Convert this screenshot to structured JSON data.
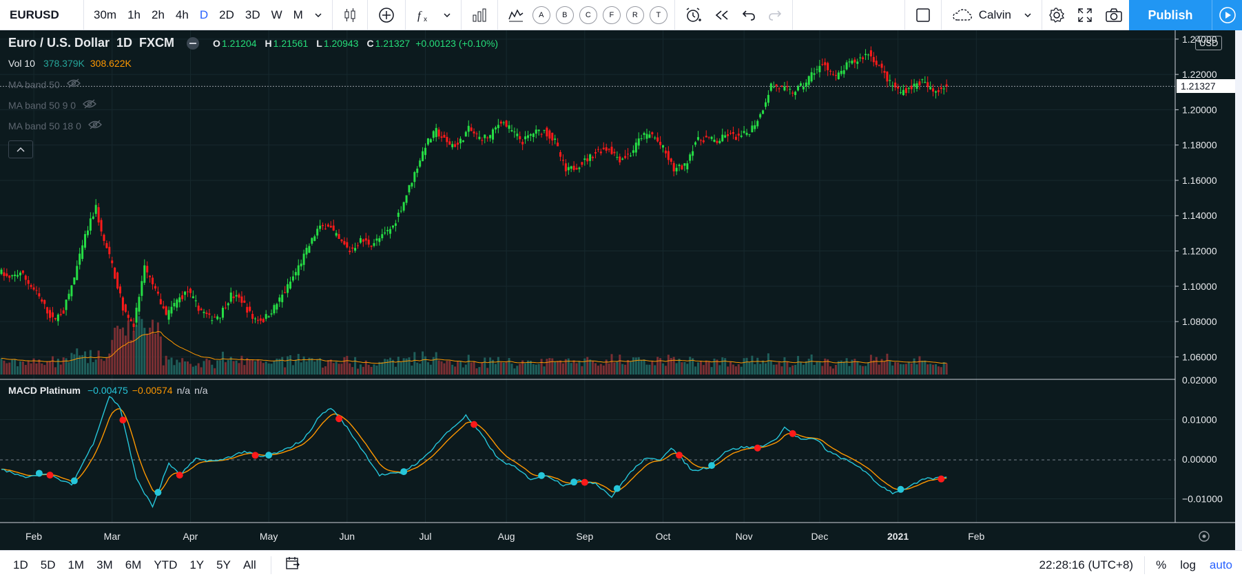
{
  "toolbar": {
    "symbol": "EURUSD",
    "timeframes": [
      "30m",
      "1h",
      "2h",
      "4h",
      "D",
      "2D",
      "3D",
      "W",
      "M"
    ],
    "active_timeframe": "D",
    "alert_circles": [
      "A",
      "B",
      "C",
      "F",
      "R",
      "T"
    ],
    "layout_name": "Calvin",
    "publish_label": "Publish"
  },
  "legend": {
    "title": "Euro / U.S. Dollar",
    "interval": "1D",
    "exchange": "FXCM",
    "o_label": "O",
    "o": "1.21204",
    "h_label": "H",
    "h": "1.21561",
    "l_label": "L",
    "l": "1.20943",
    "c_label": "C",
    "c": "1.21327",
    "change": "+0.00123 (+0.10%)",
    "vol_label": "Vol 10",
    "vol_1": "378.379K",
    "vol_2": "308.622K",
    "ma_1": "MA band 50",
    "ma_2": "MA band 50 9 0",
    "ma_3": "MA band 50 18 0",
    "macd_label": "MACD Platinum",
    "macd_1": "−0.00475",
    "macd_2": "−0.00574",
    "macd_3": "n/a",
    "macd_4": "n/a"
  },
  "price_axis": {
    "currency": "USD",
    "current_price": "1.21327",
    "ticks": [
      "1.24000",
      "1.22000",
      "1.20000",
      "1.18000",
      "1.16000",
      "1.14000",
      "1.12000",
      "1.10000",
      "1.08000",
      "1.06000"
    ]
  },
  "macd_axis": {
    "ticks": [
      "0.02000",
      "0.01000",
      "0.00000",
      "−0.01000"
    ]
  },
  "time_axis": {
    "labels": [
      "Feb",
      "Mar",
      "Apr",
      "May",
      "Jun",
      "Jul",
      "Aug",
      "Sep",
      "Oct",
      "Nov",
      "Dec",
      "2021",
      "Feb"
    ]
  },
  "colors": {
    "up": "#26de45",
    "down": "#ff1a1a",
    "background": "#0c1a1e",
    "macd_line": "#26c6da",
    "signal_line": "#ff9800",
    "accent": "#2196f3"
  },
  "bottom": {
    "ranges": [
      "1D",
      "5D",
      "1M",
      "3M",
      "6M",
      "YTD",
      "1Y",
      "5Y",
      "All"
    ],
    "clock": "22:28:16 (UTC+8)",
    "pct": "%",
    "log": "log",
    "auto": "auto"
  },
  "chart_data": {
    "type": "candlestick",
    "price_range": [
      1.05,
      1.245
    ],
    "macd_range": [
      -0.016,
      0.02
    ],
    "price_path": [
      [
        0,
        1.109
      ],
      [
        4,
        1.104
      ],
      [
        8,
        1.108
      ],
      [
        14,
        1.096
      ],
      [
        20,
        1.081
      ],
      [
        24,
        1.086
      ],
      [
        28,
        1.105
      ],
      [
        32,
        1.128
      ],
      [
        36,
        1.145
      ],
      [
        38,
        1.13
      ],
      [
        42,
        1.112
      ],
      [
        46,
        1.088
      ],
      [
        50,
        1.078
      ],
      [
        54,
        1.11
      ],
      [
        58,
        1.098
      ],
      [
        62,
        1.083
      ],
      [
        66,
        1.092
      ],
      [
        70,
        1.097
      ],
      [
        74,
        1.088
      ],
      [
        78,
        1.082
      ],
      [
        82,
        1.084
      ],
      [
        86,
        1.095
      ],
      [
        90,
        1.092
      ],
      [
        94,
        1.082
      ],
      [
        98,
        1.081
      ],
      [
        102,
        1.088
      ],
      [
        106,
        1.097
      ],
      [
        110,
        1.108
      ],
      [
        114,
        1.12
      ],
      [
        118,
        1.132
      ],
      [
        122,
        1.135
      ],
      [
        126,
        1.126
      ],
      [
        130,
        1.12
      ],
      [
        134,
        1.126
      ],
      [
        138,
        1.124
      ],
      [
        142,
        1.128
      ],
      [
        146,
        1.134
      ],
      [
        150,
        1.148
      ],
      [
        154,
        1.164
      ],
      [
        158,
        1.18
      ],
      [
        162,
        1.188
      ],
      [
        166,
        1.181
      ],
      [
        170,
        1.18
      ],
      [
        174,
        1.189
      ],
      [
        178,
        1.184
      ],
      [
        182,
        1.185
      ],
      [
        186,
        1.194
      ],
      [
        190,
        1.188
      ],
      [
        194,
        1.182
      ],
      [
        198,
        1.187
      ],
      [
        202,
        1.188
      ],
      [
        206,
        1.182
      ],
      [
        210,
        1.165
      ],
      [
        214,
        1.168
      ],
      [
        218,
        1.172
      ],
      [
        222,
        1.177
      ],
      [
        226,
        1.178
      ],
      [
        230,
        1.172
      ],
      [
        234,
        1.175
      ],
      [
        238,
        1.185
      ],
      [
        242,
        1.186
      ],
      [
        246,
        1.178
      ],
      [
        250,
        1.166
      ],
      [
        254,
        1.168
      ],
      [
        258,
        1.182
      ],
      [
        262,
        1.184
      ],
      [
        266,
        1.182
      ],
      [
        270,
        1.186
      ],
      [
        274,
        1.184
      ],
      [
        278,
        1.188
      ],
      [
        282,
        1.197
      ],
      [
        286,
        1.214
      ],
      [
        290,
        1.212
      ],
      [
        294,
        1.21
      ],
      [
        298,
        1.214
      ],
      [
        302,
        1.222
      ],
      [
        306,
        1.226
      ],
      [
        310,
        1.218
      ],
      [
        314,
        1.225
      ],
      [
        318,
        1.228
      ],
      [
        322,
        1.232
      ],
      [
        326,
        1.225
      ],
      [
        330,
        1.215
      ],
      [
        334,
        1.21
      ],
      [
        338,
        1.213
      ],
      [
        342,
        1.216
      ],
      [
        346,
        1.21
      ],
      [
        350,
        1.2133
      ]
    ],
    "macd_path": [
      [
        0,
        -0.0025
      ],
      [
        8,
        -0.0045
      ],
      [
        16,
        -0.0035
      ],
      [
        26,
        -0.0065
      ],
      [
        34,
        0.004
      ],
      [
        40,
        0.016
      ],
      [
        44,
        0.013
      ],
      [
        50,
        -0.005
      ],
      [
        56,
        -0.012
      ],
      [
        62,
        -0.001
      ],
      [
        66,
        -0.004
      ],
      [
        72,
        0.0
      ],
      [
        80,
        -0.0005
      ],
      [
        86,
        0.001
      ],
      [
        90,
        0.002
      ],
      [
        96,
        0.0005
      ],
      [
        104,
        0.002
      ],
      [
        112,
        0.005
      ],
      [
        118,
        0.011
      ],
      [
        122,
        0.013
      ],
      [
        128,
        0.008
      ],
      [
        134,
        0.002
      ],
      [
        140,
        -0.004
      ],
      [
        148,
        -0.0035
      ],
      [
        156,
        0.0
      ],
      [
        164,
        0.006
      ],
      [
        172,
        0.011
      ],
      [
        178,
        0.006
      ],
      [
        184,
        0.0
      ],
      [
        190,
        -0.002
      ],
      [
        196,
        -0.005
      ],
      [
        202,
        -0.004
      ],
      [
        208,
        -0.0065
      ],
      [
        214,
        -0.0055
      ],
      [
        220,
        -0.006
      ],
      [
        226,
        -0.0095
      ],
      [
        232,
        -0.004
      ],
      [
        238,
        0.0
      ],
      [
        244,
        0.0
      ],
      [
        248,
        0.003
      ],
      [
        256,
        -0.003
      ],
      [
        262,
        -0.002
      ],
      [
        268,
        0.002
      ],
      [
        274,
        0.003
      ],
      [
        280,
        0.003
      ],
      [
        286,
        0.0045
      ],
      [
        290,
        0.008
      ],
      [
        296,
        0.005
      ],
      [
        302,
        0.005
      ],
      [
        306,
        0.002
      ],
      [
        312,
        0.0
      ],
      [
        318,
        -0.002
      ],
      [
        324,
        -0.006
      ],
      [
        330,
        -0.0085
      ],
      [
        336,
        -0.007
      ],
      [
        342,
        -0.005
      ],
      [
        350,
        -0.0047
      ]
    ]
  }
}
